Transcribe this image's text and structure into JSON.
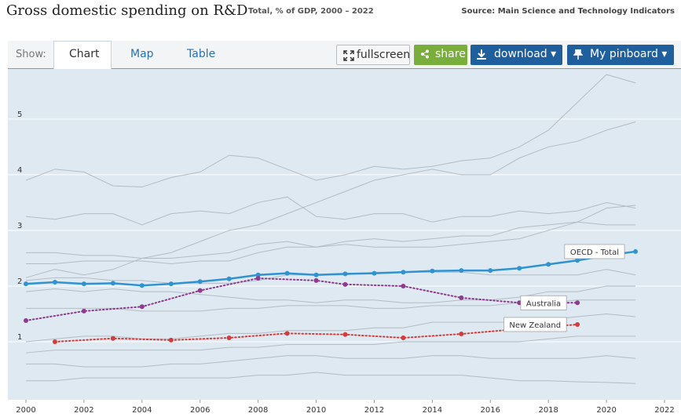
{
  "ui": {
    "title": "Gross domestic spending on R&D",
    "subtitle": "Total, % of GDP, 2000 – 2022",
    "source": "Source: Main Science and Technology Indicators",
    "show_label": "Show:",
    "tabs": [
      "Chart",
      "Map",
      "Table"
    ],
    "buttons": [
      "fullscreen",
      "share",
      "download",
      "My pinboard"
    ]
  },
  "chart_data": {
    "type": "line",
    "x": [
      2000,
      2001,
      2002,
      2003,
      2004,
      2005,
      2006,
      2007,
      2008,
      2009,
      2010,
      2011,
      2012,
      2013,
      2014,
      2015,
      2016,
      2017,
      2018,
      2019,
      2020,
      2021
    ],
    "xlim": [
      2000,
      2022
    ],
    "xticks": [
      2000,
      2002,
      2004,
      2006,
      2008,
      2010,
      2012,
      2014,
      2016,
      2018,
      2020,
      2022
    ],
    "ylim": [
      0,
      5.9
    ],
    "yticks": [
      1,
      2,
      3,
      4,
      5
    ],
    "grid": true,
    "background_series": [
      {
        "color": "#b3bcc4",
        "values": [
          3.9,
          4.1,
          4.05,
          3.8,
          3.78,
          3.95,
          4.05,
          4.35,
          4.3,
          4.1,
          3.9,
          4.0,
          4.15,
          4.1,
          4.15,
          4.25,
          4.3,
          4.5,
          4.8,
          5.3,
          5.8,
          5.65
        ]
      },
      {
        "color": "#b3bcc4",
        "values": [
          2.15,
          2.3,
          2.2,
          2.3,
          2.5,
          2.6,
          2.8,
          3.0,
          3.1,
          3.3,
          3.5,
          3.7,
          3.9,
          4.0,
          4.1,
          4.0,
          4.0,
          4.3,
          4.5,
          4.6,
          4.8,
          4.95
        ]
      },
      {
        "color": "#b3bcc4",
        "values": [
          3.25,
          3.2,
          3.3,
          3.3,
          3.1,
          3.3,
          3.35,
          3.3,
          3.5,
          3.6,
          3.25,
          3.2,
          3.3,
          3.3,
          3.15,
          3.25,
          3.25,
          3.35,
          3.3,
          3.35,
          3.5,
          3.4
        ]
      },
      {
        "color": "#b3bcc4",
        "values": [
          2.6,
          2.6,
          2.55,
          2.55,
          2.5,
          2.5,
          2.55,
          2.6,
          2.75,
          2.8,
          2.7,
          2.75,
          2.7,
          2.7,
          2.7,
          2.75,
          2.8,
          2.85,
          3.0,
          3.15,
          3.4,
          3.45
        ]
      },
      {
        "color": "#b3bcc4",
        "values": [
          2.4,
          2.4,
          2.45,
          2.45,
          2.45,
          2.4,
          2.45,
          2.45,
          2.6,
          2.7,
          2.7,
          2.8,
          2.85,
          2.8,
          2.85,
          2.9,
          2.9,
          3.05,
          3.1,
          3.15,
          3.1,
          3.1
        ]
      },
      {
        "color": "#b3bcc4",
        "values": [
          2.1,
          2.15,
          2.15,
          2.1,
          2.1,
          2.05,
          2.05,
          2.05,
          2.1,
          2.2,
          2.2,
          2.2,
          2.25,
          2.25,
          2.25,
          2.25,
          2.2,
          2.2,
          2.2,
          2.2,
          2.3,
          2.2
        ]
      },
      {
        "color": "#b3bcc4",
        "values": [
          1.6,
          1.6,
          1.6,
          1.6,
          1.55,
          1.55,
          1.55,
          1.6,
          1.6,
          1.65,
          1.65,
          1.65,
          1.6,
          1.6,
          1.65,
          1.65,
          1.65,
          1.7,
          1.7,
          1.75,
          1.75,
          1.75
        ]
      },
      {
        "color": "#b3bcc4",
        "values": [
          1.0,
          1.05,
          1.1,
          1.1,
          1.05,
          1.05,
          1.1,
          1.15,
          1.15,
          1.2,
          1.2,
          1.2,
          1.25,
          1.25,
          1.35,
          1.35,
          1.35,
          1.35,
          1.4,
          1.45,
          1.5,
          1.45
        ]
      },
      {
        "color": "#b3bcc4",
        "values": [
          0.3,
          0.3,
          0.35,
          0.35,
          0.35,
          0.35,
          0.35,
          0.35,
          0.4,
          0.4,
          0.45,
          0.4,
          0.4,
          0.4,
          0.4,
          0.4,
          0.35,
          0.3,
          0.3,
          0.28,
          0.27,
          0.25
        ]
      },
      {
        "color": "#b3bcc4",
        "values": [
          0.6,
          0.6,
          0.55,
          0.55,
          0.55,
          0.6,
          0.6,
          0.65,
          0.7,
          0.75,
          0.75,
          0.7,
          0.7,
          0.7,
          0.75,
          0.75,
          0.7,
          0.7,
          0.7,
          0.7,
          0.75,
          0.7
        ]
      },
      {
        "color": "#b3bcc4",
        "values": [
          0.8,
          0.85,
          0.85,
          0.85,
          0.85,
          0.85,
          0.85,
          0.9,
          0.9,
          0.95,
          0.95,
          0.95,
          0.95,
          1.0,
          1.0,
          1.0,
          1.0,
          1.0,
          1.05,
          1.1,
          1.1,
          1.1
        ]
      },
      {
        "color": "#b3bcc4",
        "values": [
          1.9,
          1.95,
          1.9,
          1.95,
          1.9,
          1.9,
          1.85,
          1.8,
          1.75,
          1.75,
          1.7,
          1.75,
          1.75,
          1.7,
          1.7,
          1.75,
          1.75,
          1.8,
          1.9,
          1.9,
          2.0,
          2.0
        ]
      }
    ],
    "series": [
      {
        "name": "OECD - Total",
        "color": "#2f93d2",
        "dashed": false,
        "x": [
          2000,
          2001,
          2002,
          2003,
          2004,
          2005,
          2006,
          2007,
          2008,
          2009,
          2010,
          2011,
          2012,
          2013,
          2014,
          2015,
          2016,
          2017,
          2018,
          2019,
          2020,
          2021
        ],
        "values": [
          2.04,
          2.07,
          2.04,
          2.05,
          2.01,
          2.04,
          2.08,
          2.13,
          2.2,
          2.23,
          2.2,
          2.22,
          2.23,
          2.25,
          2.27,
          2.28,
          2.28,
          2.32,
          2.39,
          2.46,
          2.55,
          2.62
        ]
      },
      {
        "name": "Australia",
        "color": "#8e3a8e",
        "dashed": true,
        "x": [
          2000,
          2002,
          2004,
          2006,
          2008,
          2010,
          2011,
          2013,
          2015,
          2017,
          2019
        ],
        "values": [
          1.38,
          1.55,
          1.63,
          1.92,
          2.14,
          2.1,
          2.03,
          2.0,
          1.79,
          1.7,
          1.7
        ]
      },
      {
        "name": "New Zealand",
        "color": "#d63b3b",
        "dashed": true,
        "x": [
          2001,
          2003,
          2005,
          2007,
          2009,
          2011,
          2013,
          2015,
          2017,
          2019
        ],
        "values": [
          1.0,
          1.06,
          1.03,
          1.07,
          1.15,
          1.13,
          1.07,
          1.14,
          1.23,
          1.31
        ]
      }
    ]
  }
}
